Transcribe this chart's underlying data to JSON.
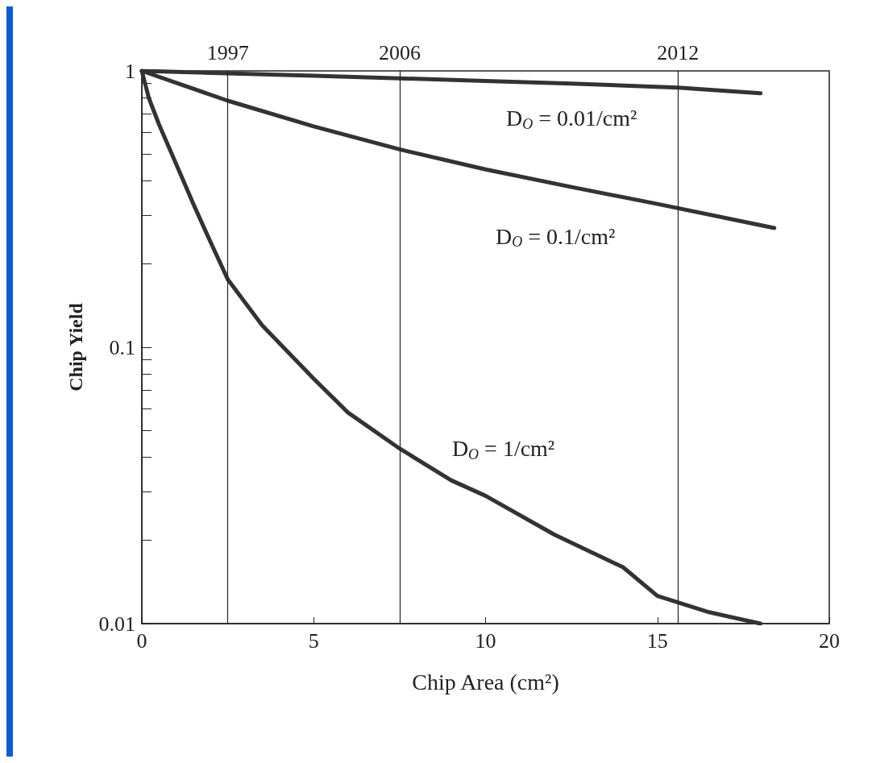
{
  "chart_data": {
    "type": "line",
    "xlabel": "Chip Area (cm²)",
    "ylabel": "Chip Yield",
    "xlim": [
      0,
      20
    ],
    "xticks": [
      0,
      5,
      10,
      15,
      20
    ],
    "ylim": [
      0.01,
      1
    ],
    "log": "y",
    "yticks": [
      {
        "value": 0.01,
        "label": "0.01"
      },
      {
        "value": 0.02,
        "label": null
      },
      {
        "value": 0.03,
        "label": null
      },
      {
        "value": 0.04,
        "label": null
      },
      {
        "value": 0.05,
        "label": null
      },
      {
        "value": 0.06,
        "label": null
      },
      {
        "value": 0.07,
        "label": null
      },
      {
        "value": 0.08,
        "label": null
      },
      {
        "value": 0.09,
        "label": null
      },
      {
        "value": 0.1,
        "label": "0.1"
      },
      {
        "value": 0.2,
        "label": null
      },
      {
        "value": 0.3,
        "label": null
      },
      {
        "value": 0.4,
        "label": null
      },
      {
        "value": 0.5,
        "label": null
      },
      {
        "value": 0.6,
        "label": null
      },
      {
        "value": 0.7,
        "label": null
      },
      {
        "value": 0.8,
        "label": null
      },
      {
        "value": 0.9,
        "label": null
      },
      {
        "value": 1,
        "label": "1"
      }
    ],
    "grid": false,
    "legend": false,
    "marker": "none",
    "line_style": "solid",
    "ref_lines": [
      {
        "axis": "x",
        "value": 2.5
      },
      {
        "axis": "x",
        "value": 7.5
      },
      {
        "axis": "x",
        "value": 15.6
      }
    ],
    "annotations": [
      {
        "text": "1997",
        "x": 2.5,
        "y": 1
      },
      {
        "text": "2006",
        "x": 7.5,
        "y": 1
      },
      {
        "text": "2012",
        "x": 15.6,
        "y": 1
      }
    ],
    "series": [
      {
        "name": "D$_{O}$ = 0.01/cm²",
        "color": "#333333",
        "x": [
          0,
          5,
          7.5,
          10,
          12.5,
          15.6,
          18
        ],
        "values": [
          1,
          0.96,
          0.94,
          0.92,
          0.9,
          0.87,
          0.83
        ]
      },
      {
        "name": "D$_{O}$ = 0.1/cm²",
        "color": "#333333",
        "x": [
          0,
          2.5,
          5,
          7.5,
          10,
          12.5,
          15,
          18.4
        ],
        "values": [
          1,
          0.78,
          0.63,
          0.52,
          0.44,
          0.38,
          0.33,
          0.27
        ]
      },
      {
        "name": "D$_{O}$ = 1/cm²",
        "color": "#333333",
        "x": [
          0,
          0.2,
          0.5,
          1,
          1.5,
          2,
          2.5,
          3.5,
          5,
          6,
          7.5,
          9,
          10,
          12,
          14,
          15,
          16.5,
          18
        ],
        "values": [
          1,
          0.8,
          0.64,
          0.46,
          0.33,
          0.24,
          0.176,
          0.12,
          0.077,
          0.058,
          0.043,
          0.033,
          0.029,
          0.021,
          0.016,
          0.0126,
          0.011,
          0.01
        ]
      }
    ]
  }
}
